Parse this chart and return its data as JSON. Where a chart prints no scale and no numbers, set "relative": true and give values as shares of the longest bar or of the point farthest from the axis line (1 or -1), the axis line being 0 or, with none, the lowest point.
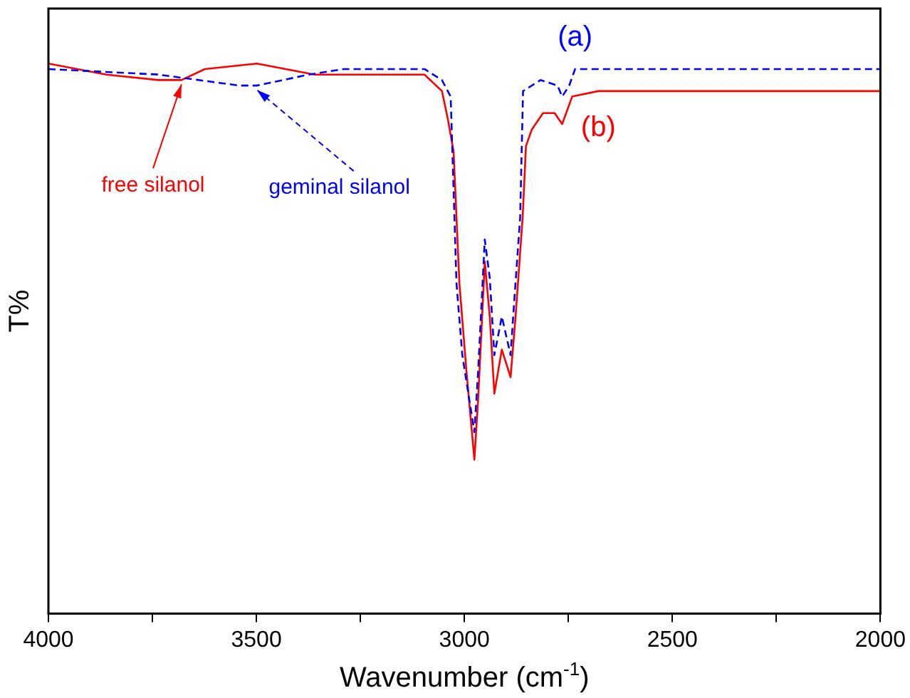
{
  "chart_data": {
    "type": "line",
    "relative": true,
    "xlabel": "Wavenumber (cm$^{-1}$)",
    "ylabel": "T%",
    "xlim": [
      4000,
      2000
    ],
    "xticks": [
      4000,
      {
        "value": 3750,
        "label": null
      },
      3500,
      {
        "value": 3250,
        "label": null
      },
      3000,
      {
        "value": 2750,
        "label": null
      },
      2500,
      {
        "value": 2250,
        "label": null
      },
      2000
    ],
    "legend": false,
    "grid": false,
    "marker": "none",
    "series": [
      {
        "name": "(a)",
        "color": "#0000ff",
        "line_style": "dashed",
        "x": [
          4000,
          3736,
          3541,
          3499,
          3374,
          3290,
          3096,
          3054,
          3033,
          3019,
          3005,
          2976,
          2967,
          2951,
          2939,
          2928,
          2910,
          2889,
          2880,
          2866,
          2859,
          2817,
          2776,
          2765,
          2748,
          2734,
          2414,
          2000
        ],
        "values": [
          0.99,
          0.98,
          0.96,
          0.96,
          0.98,
          0.99,
          0.99,
          0.97,
          0.94,
          0.6,
          0.47,
          0.33,
          0.44,
          0.68,
          0.61,
          0.47,
          0.54,
          0.47,
          0.57,
          0.72,
          0.95,
          0.97,
          0.96,
          0.94,
          0.96,
          0.99,
          0.99,
          0.99
        ]
      },
      {
        "name": "(b)",
        "color": "#ff0000",
        "line_style": "solid",
        "x": [
          4000,
          3861,
          3736,
          3680,
          3624,
          3499,
          3360,
          3179,
          3096,
          3054,
          3040,
          3026,
          3012,
          2995,
          2976,
          2967,
          2951,
          2939,
          2928,
          2910,
          2889,
          2877,
          2860,
          2852,
          2838,
          2811,
          2783,
          2765,
          2741,
          2678,
          2414,
          2066,
          2000
        ],
        "values": [
          1.0,
          0.98,
          0.97,
          0.97,
          0.99,
          1.0,
          0.98,
          0.98,
          0.98,
          0.95,
          0.9,
          0.84,
          0.6,
          0.44,
          0.28,
          0.39,
          0.64,
          0.54,
          0.4,
          0.48,
          0.43,
          0.54,
          0.72,
          0.85,
          0.88,
          0.91,
          0.91,
          0.89,
          0.94,
          0.95,
          0.95,
          0.95,
          0.95
        ]
      }
    ],
    "annotations": [
      {
        "text": "free silanol",
        "x": 3680,
        "y": 0.97
      },
      {
        "text": "geminal silanol",
        "x": 3499,
        "y": 0.96
      }
    ]
  }
}
